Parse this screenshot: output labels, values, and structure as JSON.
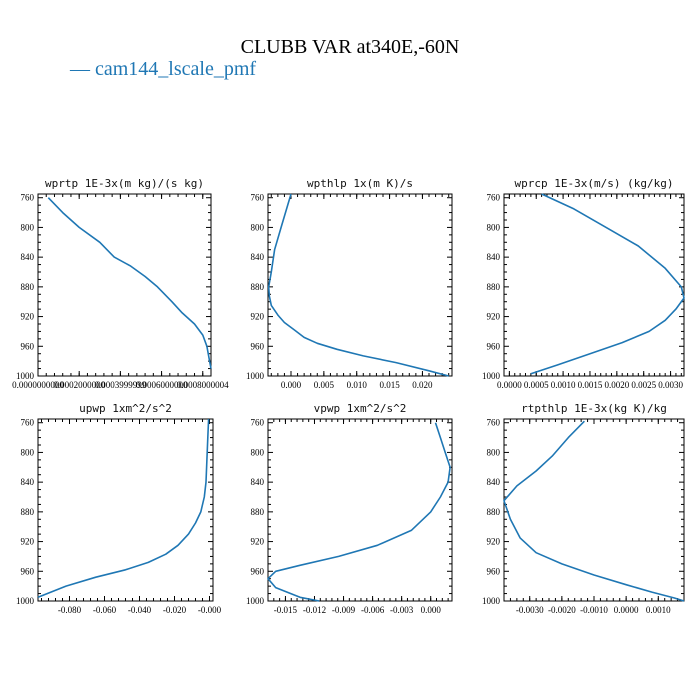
{
  "title": "CLUBB VAR at340E,-60N",
  "legend": [
    {
      "label": "cam144_lscale_pmf",
      "color": "#1f77b4"
    }
  ],
  "chart_data": [
    {
      "type": "line",
      "title": "wprtp  1E-3x(m kg)/(s kg)",
      "yticks": [
        "760",
        "800",
        "840",
        "880",
        "920",
        "960",
        "1000"
      ],
      "xticks": [
        "0.0000000000",
        "0.0002000000",
        "0.0003999999",
        "0.0006000000",
        "0.0008000004"
      ],
      "ylim": [
        1000,
        755
      ],
      "xlim": [
        0.0,
        0.00084
      ],
      "series": [
        {
          "color": "#1f77b4",
          "x": [
            5e-05,
            0.00012,
            0.0002,
            0.0003,
            0.00037,
            0.00045,
            0.00052,
            0.00058,
            0.00065,
            0.0007,
            0.00076,
            0.0008,
            0.00082,
            0.00083,
            0.00084
          ],
          "y": [
            760,
            780,
            800,
            820,
            840,
            852,
            866,
            880,
            900,
            915,
            930,
            945,
            960,
            975,
            990
          ]
        }
      ]
    },
    {
      "type": "line",
      "title": "wpthlp  1x(m K)/s",
      "yticks": [
        "760",
        "800",
        "840",
        "880",
        "920",
        "960",
        "1000"
      ],
      "xticks": [
        "0.000",
        "0.005",
        "0.010",
        "0.015",
        "0.020"
      ],
      "ylim": [
        1000,
        755
      ],
      "xlim": [
        -0.0035,
        0.0245
      ],
      "series": [
        {
          "color": "#1f77b4",
          "x": [
            0.0,
            -0.0005,
            -0.0015,
            -0.0025,
            -0.003,
            -0.0034,
            -0.0033,
            -0.003,
            -0.002,
            -0.001,
            0.0005,
            0.002,
            0.004,
            0.007,
            0.011,
            0.016,
            0.021,
            0.024
          ],
          "y": [
            755,
            770,
            800,
            830,
            860,
            880,
            892,
            905,
            918,
            928,
            938,
            948,
            956,
            964,
            973,
            982,
            993,
            1000
          ]
        }
      ]
    },
    {
      "type": "line",
      "title": "wprcp  1E-3x(m/s) (kg/kg)",
      "yticks": [
        "760",
        "800",
        "840",
        "880",
        "920",
        "960",
        "1000"
      ],
      "xticks": [
        "0.0000",
        "0.0005",
        "0.0010",
        "0.0015",
        "0.0020",
        "0.0025",
        "0.0030"
      ],
      "ylim": [
        1000,
        755
      ],
      "xlim": [
        -0.0001,
        0.00325
      ],
      "series": [
        {
          "color": "#1f77b4",
          "x": [
            0.0006,
            0.0012,
            0.0018,
            0.0024,
            0.0029,
            0.0032,
            0.00325,
            0.0031,
            0.0029,
            0.0026,
            0.0021,
            0.0015,
            0.0009,
            0.0004
          ],
          "y": [
            755,
            775,
            800,
            825,
            855,
            880,
            895,
            910,
            925,
            940,
            955,
            970,
            985,
            997
          ]
        }
      ]
    },
    {
      "type": "line",
      "title": "upwp  1xm^2/s^2",
      "yticks": [
        "760",
        "800",
        "840",
        "880",
        "920",
        "960",
        "1000"
      ],
      "xticks": [
        "-0.080",
        "-0.060",
        "-0.040",
        "-0.020",
        "-0.000"
      ],
      "ylim": [
        1000,
        755
      ],
      "xlim": [
        -0.098,
        0.002
      ],
      "series": [
        {
          "color": "#1f77b4",
          "x": [
            -0.0005,
            -0.001,
            -0.0015,
            -0.002,
            -0.003,
            -0.005,
            -0.008,
            -0.012,
            -0.018,
            -0.025,
            -0.035,
            -0.048,
            -0.065,
            -0.082,
            -0.098
          ],
          "y": [
            755,
            780,
            810,
            840,
            860,
            880,
            895,
            910,
            925,
            937,
            948,
            958,
            968,
            980,
            995
          ]
        }
      ]
    },
    {
      "type": "line",
      "title": "vpwp  1xm^2/s^2",
      "yticks": [
        "760",
        "800",
        "840",
        "880",
        "920",
        "960",
        "1000"
      ],
      "xticks": [
        "-0.015",
        "-0.012",
        "-0.009",
        "-0.006",
        "-0.003",
        "0.000"
      ],
      "ylim": [
        1000,
        755
      ],
      "xlim": [
        -0.0168,
        0.0022
      ],
      "series": [
        {
          "color": "#1f77b4",
          "x": [
            0.0005,
            0.001,
            0.0015,
            0.002,
            0.0018,
            0.001,
            0.0,
            -0.002,
            -0.0055,
            -0.0095,
            -0.0135,
            -0.016,
            -0.0168,
            -0.016,
            -0.0135,
            -0.0115
          ],
          "y": [
            760,
            780,
            800,
            820,
            840,
            860,
            880,
            905,
            925,
            940,
            952,
            960,
            970,
            982,
            995,
            1000
          ]
        }
      ]
    },
    {
      "type": "line",
      "title": "rtpthlp  1E-3x(kg K)/kg",
      "yticks": [
        "760",
        "800",
        "840",
        "880",
        "920",
        "960",
        "1000"
      ],
      "xticks": [
        "-0.0030",
        "-0.0020",
        "-0.0010",
        "0.0000",
        "0.0010"
      ],
      "ylim": [
        1000,
        755
      ],
      "xlim": [
        -0.0038,
        0.0018
      ],
      "series": [
        {
          "color": "#1f77b4",
          "x": [
            -0.0013,
            -0.0018,
            -0.0023,
            -0.0028,
            -0.0034,
            -0.0038,
            -0.0036,
            -0.0033,
            -0.0028,
            -0.002,
            -0.001,
            0.0,
            0.0008,
            0.0015,
            0.0018
          ],
          "y": [
            758,
            780,
            805,
            825,
            845,
            865,
            890,
            915,
            935,
            950,
            965,
            978,
            988,
            996,
            1000
          ]
        }
      ]
    }
  ]
}
